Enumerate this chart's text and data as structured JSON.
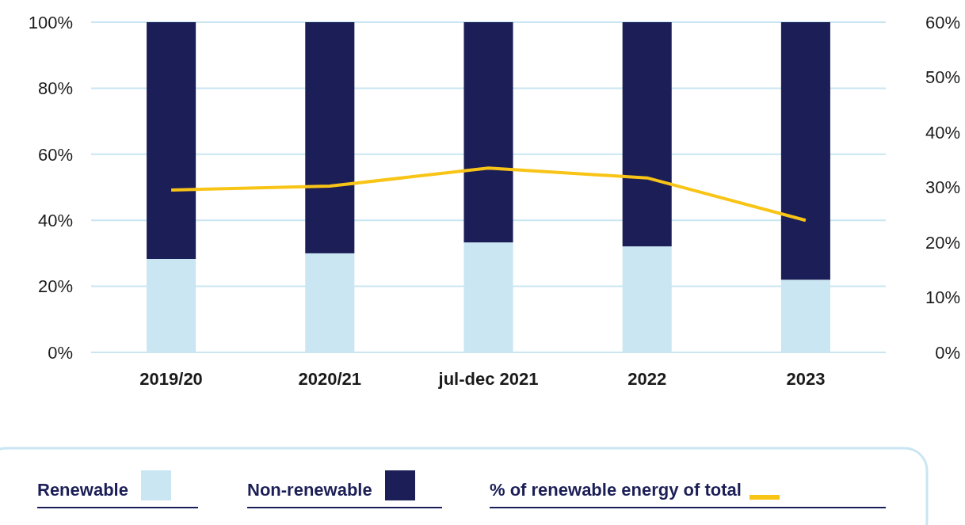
{
  "chart_data": {
    "type": "bar",
    "stacked": true,
    "categories": [
      "2019/20",
      "2020/21",
      "jul-dec 2021",
      "2022",
      "2023"
    ],
    "series": [
      {
        "name": "Renewable",
        "color": "#c9e6f2",
        "values": [
          28.3,
          30,
          33.3,
          32.1,
          22
        ]
      },
      {
        "name": "Non-renewable",
        "color": "#1c1f57",
        "values": [
          71.7,
          70,
          66.7,
          67.9,
          78
        ]
      },
      {
        "name": "% of renewable energy of total",
        "type": "line",
        "axis": "y2",
        "color": "#f8c416",
        "values": [
          29.5,
          30.2,
          33.5,
          31.7,
          24
        ]
      }
    ],
    "ylim": [
      0,
      100
    ],
    "yticks": [
      {
        "value": 0,
        "label": "0%"
      },
      {
        "value": 20,
        "label": "20%"
      },
      {
        "value": 40,
        "label": "40%"
      },
      {
        "value": 60,
        "label": "60%"
      },
      {
        "value": 80,
        "label": "80%"
      },
      {
        "value": 100,
        "label": "100%"
      }
    ],
    "y2lim": [
      0,
      60
    ],
    "y2ticks": [
      {
        "value": 0,
        "label": "0%"
      },
      {
        "value": 10,
        "label": "10%"
      },
      {
        "value": 20,
        "label": "20%"
      },
      {
        "value": 30,
        "label": "30%"
      },
      {
        "value": 40,
        "label": "40%"
      },
      {
        "value": 50,
        "label": "50%"
      },
      {
        "value": 60,
        "label": "60%"
      }
    ],
    "grid": "y",
    "legend": "bottom"
  }
}
